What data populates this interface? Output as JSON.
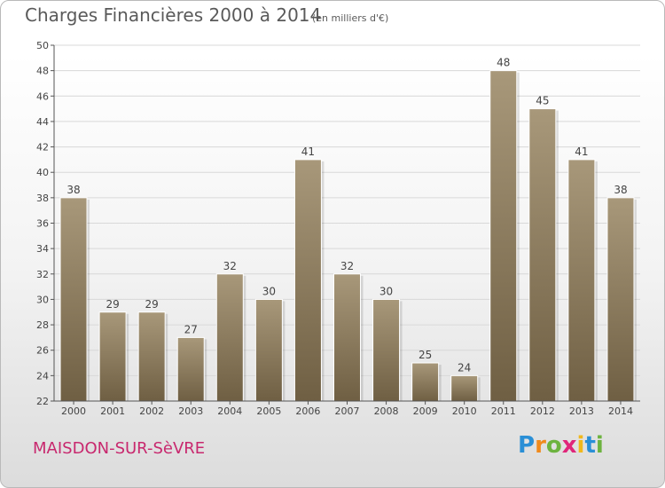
{
  "header": {
    "title": "Charges Financières 2000 à 2014",
    "subtitle": "(en milliers d'€)"
  },
  "footer": {
    "commune": "MAISDON-SUR-SèVRE",
    "logo_text": "Proxiti",
    "logo_letters": [
      {
        "char": "P",
        "color": "#2a8fd6"
      },
      {
        "char": "r",
        "color": "#f08a1c"
      },
      {
        "char": "o",
        "color": "#6db33f"
      },
      {
        "char": "x",
        "color": "#e0267a"
      },
      {
        "char": "i",
        "color": "#f0b81c"
      },
      {
        "char": "t",
        "color": "#2a8fd6"
      },
      {
        "char": "i",
        "color": "#6db33f"
      }
    ]
  },
  "colors": {
    "bar_top": "#a8987a",
    "bar_bottom": "#6f5f43",
    "axis": "#555555",
    "grid": "#d8d8d8"
  },
  "chart_data": {
    "type": "bar",
    "title": "Charges Financières 2000 à 2014",
    "subtitle": "(en milliers d'€)",
    "categories": [
      "2000",
      "2001",
      "2002",
      "2003",
      "2004",
      "2005",
      "2006",
      "2007",
      "2008",
      "2009",
      "2010",
      "2011",
      "2012",
      "2013",
      "2014"
    ],
    "values": [
      38,
      29,
      29,
      27,
      32,
      30,
      41,
      32,
      30,
      25,
      24,
      48,
      45,
      41,
      38
    ],
    "ylim": [
      22,
      50
    ],
    "yticks": [
      22,
      24,
      26,
      28,
      30,
      32,
      34,
      36,
      38,
      40,
      42,
      44,
      46,
      48,
      50
    ],
    "grid": true,
    "data_labels": true
  }
}
